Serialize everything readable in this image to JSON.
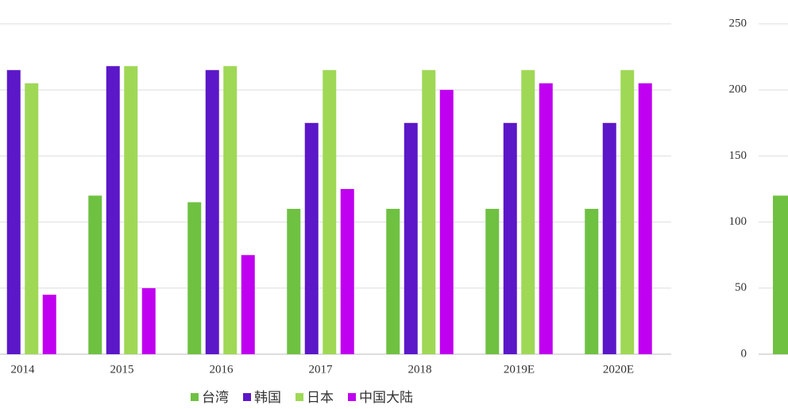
{
  "chart_data": [
    {
      "type": "bar",
      "categories": [
        "2014",
        "2015",
        "2016",
        "2017",
        "2018",
        "2019E",
        "2020E"
      ],
      "series": [
        {
          "name": "台湾",
          "color": "#6fc142",
          "values": [
            null,
            120,
            115,
            110,
            110,
            110,
            110
          ]
        },
        {
          "name": "韩国",
          "color": "#5b17c8",
          "values": [
            215,
            218,
            215,
            175,
            175,
            175,
            175
          ]
        },
        {
          "name": "日本",
          "color": "#9fd855",
          "values": [
            205,
            218,
            218,
            215,
            215,
            215,
            215
          ]
        },
        {
          "name": "中国大陆",
          "color": "#c000f0",
          "values": [
            45,
            50,
            75,
            125,
            200,
            205,
            205
          ]
        }
      ],
      "ylim": [
        0,
        250
      ],
      "yticks": [
        0,
        50,
        100,
        150,
        200,
        250
      ],
      "grid": true
    },
    {
      "type": "bar",
      "series": [
        {
          "color": "#6fc142",
          "values": [
            120
          ]
        }
      ],
      "ylim": [
        0,
        250
      ],
      "yticks": [
        0,
        50,
        100,
        150,
        200,
        250
      ],
      "grid": true
    }
  ]
}
